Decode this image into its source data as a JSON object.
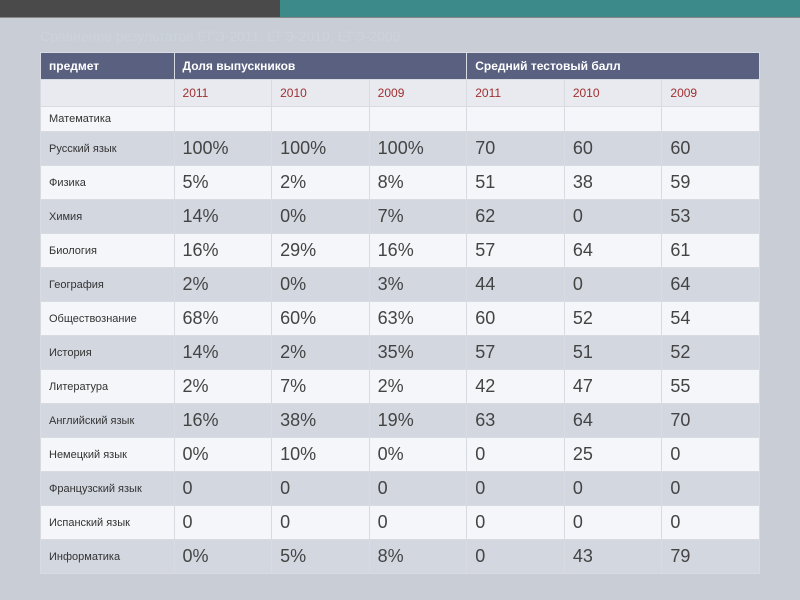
{
  "title": "Сравнение результатов ЕГЭ-2011, ЕГЭ-2010, ЕГЭ-2009",
  "colors": {
    "header_bg": "#5a6180",
    "header_fg": "#ffffff",
    "year_fg": "#a03030",
    "row_light": "#f5f6f9",
    "row_dark": "#d3d7e0",
    "page_bg": "#c9ced6"
  },
  "table": {
    "type": "table",
    "group_headers": [
      "предмет",
      "Доля выпускников",
      "Средний тестовый балл"
    ],
    "year_columns": [
      "2011",
      "2010",
      "2009",
      "2011",
      "2010",
      "2009"
    ],
    "rows": [
      {
        "subject": "Математика",
        "values": [
          "",
          "",
          "",
          "",
          "",
          ""
        ]
      },
      {
        "subject": "Русский язык",
        "values": [
          "100%",
          "100%",
          "100%",
          "70",
          "60",
          "60"
        ]
      },
      {
        "subject": "Физика",
        "values": [
          "5%",
          "2%",
          "8%",
          "51",
          "38",
          "59"
        ]
      },
      {
        "subject": "Химия",
        "values": [
          "14%",
          "0%",
          "7%",
          "62",
          "0",
          "53"
        ]
      },
      {
        "subject": "Биология",
        "values": [
          "16%",
          "29%",
          "16%",
          "57",
          "64",
          "61"
        ]
      },
      {
        "subject": "География",
        "values": [
          "2%",
          "0%",
          "3%",
          "44",
          "0",
          "64"
        ]
      },
      {
        "subject": "Обществознание",
        "values": [
          "68%",
          "60%",
          "63%",
          "60",
          "52",
          "54"
        ]
      },
      {
        "subject": "История",
        "values": [
          "14%",
          "2%",
          "35%",
          "57",
          "51",
          "52"
        ]
      },
      {
        "subject": "Литература",
        "values": [
          "2%",
          "7%",
          "2%",
          "42",
          "47",
          "55"
        ]
      },
      {
        "subject": "Английский язык",
        "values": [
          "16%",
          "38%",
          "19%",
          "63",
          "64",
          "70"
        ]
      },
      {
        "subject": "Немецкий язык",
        "values": [
          "0%",
          "10%",
          "0%",
          "0",
          "25",
          "0"
        ]
      },
      {
        "subject": "Французский язык",
        "values": [
          "0",
          "0",
          "0",
          "0",
          "0",
          "0"
        ]
      },
      {
        "subject": "Испанский язык",
        "values": [
          "0",
          "0",
          "0",
          "0",
          "0",
          "0"
        ]
      },
      {
        "subject": "Информатика",
        "values": [
          "0%",
          "5%",
          "8%",
          "0",
          "43",
          "79"
        ]
      }
    ]
  }
}
